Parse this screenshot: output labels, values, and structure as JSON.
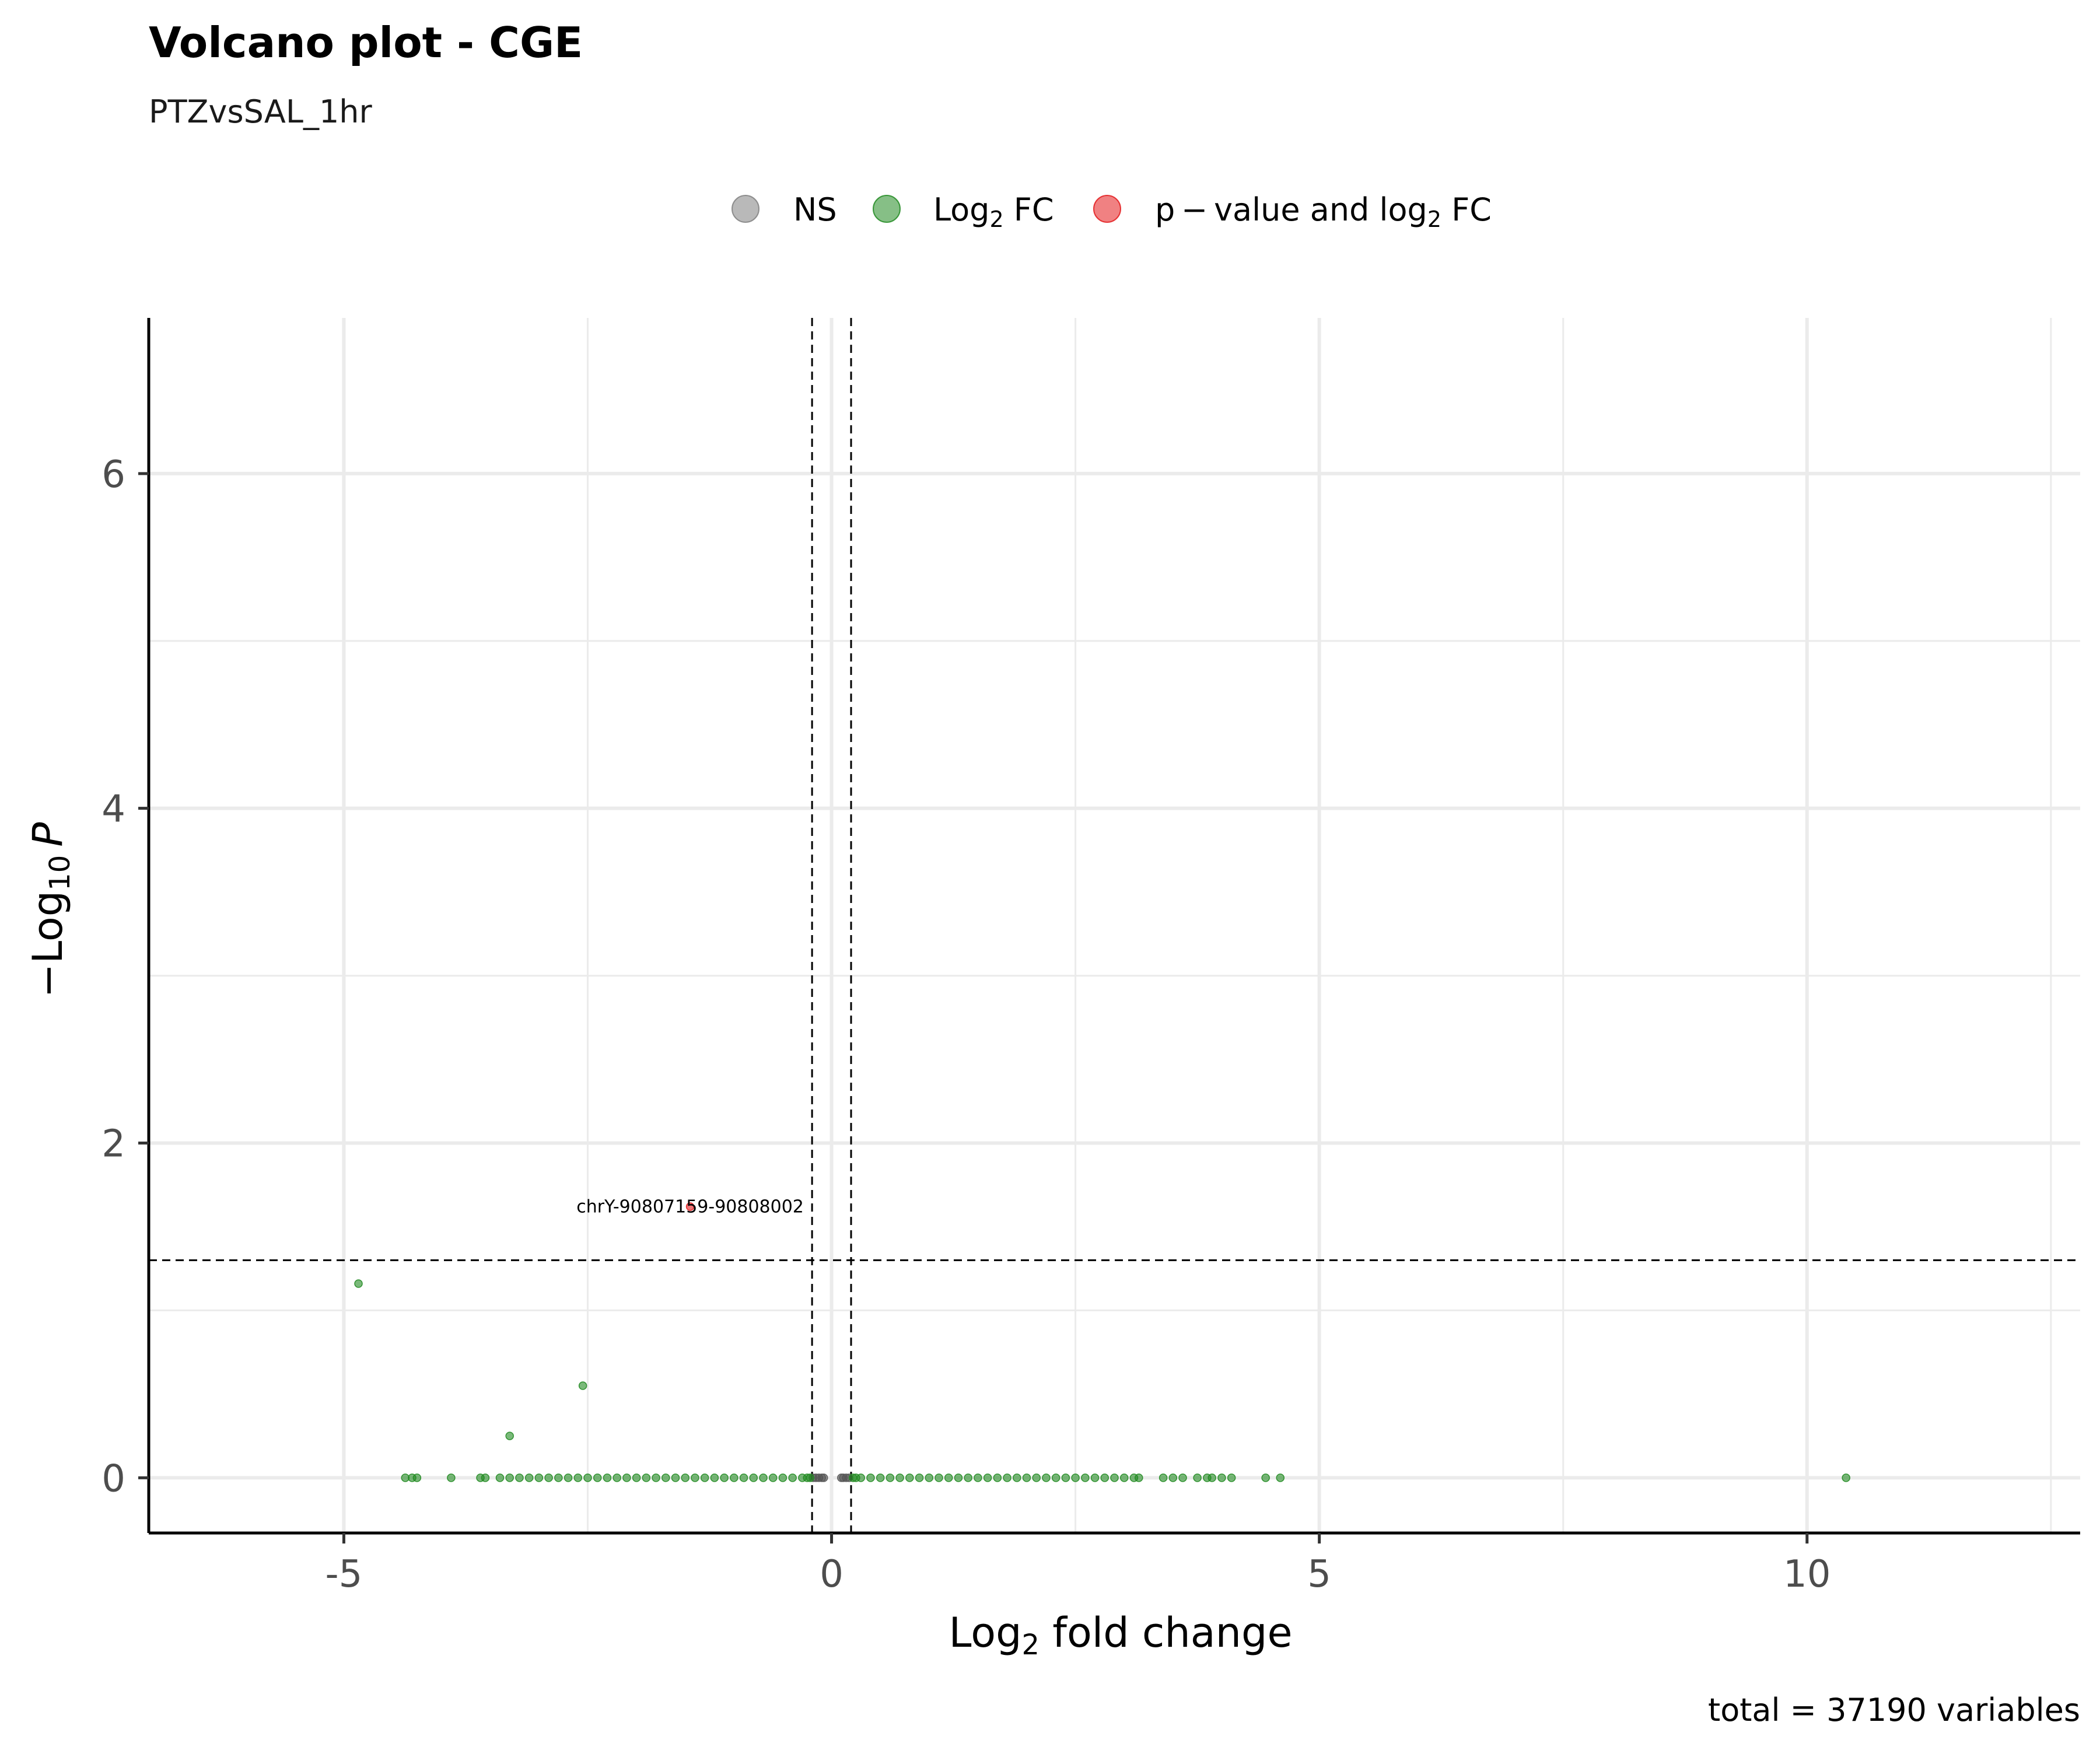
{
  "chart_data": {
    "type": "scatter",
    "title": "Volcano plot - CGE",
    "subtitle": "PTZvsSAL_1hr",
    "xlabel": {
      "base": "Log",
      "sub": "2",
      "rest": " fold change"
    },
    "ylabel": {
      "prefix": "−Log",
      "sub": "10",
      "italic": "P"
    },
    "caption": "total = 37190 variables",
    "xlim": [
      -7.0,
      12.8
    ],
    "ylim": [
      -0.33,
      6.93
    ],
    "x_ticks": [
      -5,
      0,
      5,
      10
    ],
    "x_tick_labels": [
      "-5",
      "0",
      "5",
      "10"
    ],
    "y_ticks": [
      0,
      2,
      4,
      6
    ],
    "y_tick_labels": [
      "0",
      "2",
      "4",
      "6"
    ],
    "x_minor_grid": [
      -2.5,
      2.5,
      7.5,
      12.5
    ],
    "y_minor_grid": [
      1,
      3,
      5
    ],
    "fc_cutoff": 0.2,
    "p_cutoff_neglog10": 1.3,
    "grid": true,
    "legend_position": "top",
    "legend": [
      {
        "key": "ns",
        "label": "NS",
        "color": "#808080"
      },
      {
        "key": "fc",
        "label": {
          "base": "Log",
          "sub": "2",
          "rest": " FC"
        },
        "color": "#228B22"
      },
      {
        "key": "both",
        "label": {
          "base": "p − value and log",
          "sub": "2",
          "rest": " FC"
        },
        "color": "#E31A1C"
      }
    ],
    "series": [
      {
        "name": "NS",
        "color": "#555555",
        "points": [
          [
            -0.19,
            0
          ],
          [
            -0.16,
            0
          ],
          [
            -0.13,
            0
          ],
          [
            -0.1,
            0
          ],
          [
            -0.08,
            0
          ],
          [
            0.1,
            0
          ],
          [
            0.12,
            0
          ],
          [
            0.15,
            0
          ],
          [
            0.18,
            0
          ]
        ]
      },
      {
        "name": "Log2 FC",
        "color": "#228B22",
        "points": [
          [
            -4.85,
            1.16
          ],
          [
            -2.55,
            0.55
          ],
          [
            -3.3,
            0.25
          ],
          [
            -4.37,
            0
          ],
          [
            -4.3,
            0
          ],
          [
            -4.25,
            0
          ],
          [
            -3.9,
            0
          ],
          [
            -3.6,
            0
          ],
          [
            -3.55,
            0
          ],
          [
            -3.4,
            0
          ],
          [
            -3.3,
            0
          ],
          [
            -3.2,
            0
          ],
          [
            -3.1,
            0
          ],
          [
            -3.0,
            0
          ],
          [
            -2.9,
            0
          ],
          [
            -2.8,
            0
          ],
          [
            -2.7,
            0
          ],
          [
            -2.6,
            0
          ],
          [
            -2.5,
            0
          ],
          [
            -2.4,
            0
          ],
          [
            -2.3,
            0
          ],
          [
            -2.2,
            0
          ],
          [
            -2.1,
            0
          ],
          [
            -2.0,
            0
          ],
          [
            -1.9,
            0
          ],
          [
            -1.8,
            0
          ],
          [
            -1.7,
            0
          ],
          [
            -1.6,
            0
          ],
          [
            -1.5,
            0
          ],
          [
            -1.4,
            0
          ],
          [
            -1.3,
            0
          ],
          [
            -1.2,
            0
          ],
          [
            -1.1,
            0
          ],
          [
            -1.0,
            0
          ],
          [
            -0.9,
            0
          ],
          [
            -0.8,
            0
          ],
          [
            -0.7,
            0
          ],
          [
            -0.6,
            0
          ],
          [
            -0.5,
            0
          ],
          [
            -0.4,
            0
          ],
          [
            -0.3,
            0
          ],
          [
            -0.25,
            0
          ],
          [
            -0.22,
            0
          ],
          [
            0.22,
            0
          ],
          [
            0.25,
            0
          ],
          [
            0.3,
            0
          ],
          [
            0.4,
            0
          ],
          [
            0.5,
            0
          ],
          [
            0.6,
            0
          ],
          [
            0.7,
            0
          ],
          [
            0.8,
            0
          ],
          [
            0.9,
            0
          ],
          [
            1.0,
            0
          ],
          [
            1.1,
            0
          ],
          [
            1.2,
            0
          ],
          [
            1.3,
            0
          ],
          [
            1.4,
            0
          ],
          [
            1.5,
            0
          ],
          [
            1.6,
            0
          ],
          [
            1.7,
            0
          ],
          [
            1.8,
            0
          ],
          [
            1.9,
            0
          ],
          [
            2.0,
            0
          ],
          [
            2.1,
            0
          ],
          [
            2.2,
            0
          ],
          [
            2.3,
            0
          ],
          [
            2.4,
            0
          ],
          [
            2.5,
            0
          ],
          [
            2.6,
            0
          ],
          [
            2.7,
            0
          ],
          [
            2.8,
            0
          ],
          [
            2.9,
            0
          ],
          [
            3.0,
            0
          ],
          [
            3.1,
            0
          ],
          [
            3.15,
            0
          ],
          [
            3.4,
            0
          ],
          [
            3.5,
            0
          ],
          [
            3.6,
            0
          ],
          [
            3.75,
            0
          ],
          [
            3.85,
            0
          ],
          [
            3.9,
            0
          ],
          [
            4.0,
            0
          ],
          [
            4.1,
            0
          ],
          [
            4.45,
            0
          ],
          [
            4.6,
            0
          ],
          [
            10.4,
            0
          ]
        ]
      },
      {
        "name": "p - value and log2 FC",
        "color": "#E31A1C",
        "points": [
          [
            -1.45,
            1.62
          ]
        ]
      }
    ],
    "annotations": [
      {
        "text": "chrY-90807159-90808002",
        "x": -1.45,
        "y": 1.62
      }
    ]
  }
}
